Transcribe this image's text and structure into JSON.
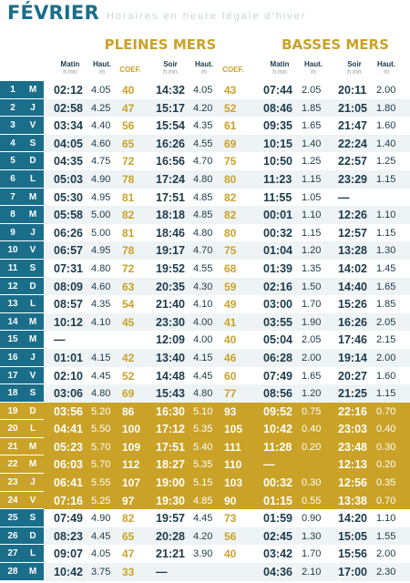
{
  "title": {
    "month": "FÉVRIER",
    "subtitle": "Horaires en heure légale d'hiver"
  },
  "sections": {
    "high": "PLEINES MERS",
    "low": "BASSES MERS"
  },
  "headers": {
    "morning": "Matin",
    "evening": "Soir",
    "unit_time": "h mn",
    "height": "Haut.",
    "unit_height": "m",
    "coef": "COEF."
  },
  "rows": [
    {
      "d": "1",
      "w": "M",
      "hm_t": "02:12",
      "hm_h": "4.05",
      "hm_c": "40",
      "he_t": "14:32",
      "he_h": "4.05",
      "he_c": "43",
      "lm_t": "07:44",
      "lm_h": "2.05",
      "le_t": "20:11",
      "le_h": "2.00"
    },
    {
      "d": "2",
      "w": "J",
      "hm_t": "02:58",
      "hm_h": "4.25",
      "hm_c": "47",
      "he_t": "15:17",
      "he_h": "4.20",
      "he_c": "52",
      "lm_t": "08:46",
      "lm_h": "1.85",
      "le_t": "21:05",
      "le_h": "1.80"
    },
    {
      "d": "3",
      "w": "V",
      "hm_t": "03:34",
      "hm_h": "4.40",
      "hm_c": "56",
      "he_t": "15:54",
      "he_h": "4.35",
      "he_c": "61",
      "lm_t": "09:35",
      "lm_h": "1.65",
      "le_t": "21:47",
      "le_h": "1.60"
    },
    {
      "d": "4",
      "w": "S",
      "hm_t": "04:05",
      "hm_h": "4.60",
      "hm_c": "65",
      "he_t": "16:26",
      "he_h": "4.55",
      "he_c": "69",
      "lm_t": "10:15",
      "lm_h": "1.40",
      "le_t": "22:24",
      "le_h": "1.40"
    },
    {
      "d": "5",
      "w": "D",
      "hm_t": "04:35",
      "hm_h": "4.75",
      "hm_c": "72",
      "he_t": "16:56",
      "he_h": "4.70",
      "he_c": "75",
      "lm_t": "10:50",
      "lm_h": "1.25",
      "le_t": "22:57",
      "le_h": "1.25"
    },
    {
      "d": "6",
      "w": "L",
      "hm_t": "05:03",
      "hm_h": "4.90",
      "hm_c": "78",
      "he_t": "17:24",
      "he_h": "4.80",
      "he_c": "80",
      "lm_t": "11:23",
      "lm_h": "1.15",
      "le_t": "23:29",
      "le_h": "1.15"
    },
    {
      "d": "7",
      "w": "M",
      "hm_t": "05:30",
      "hm_h": "4.95",
      "hm_c": "81",
      "he_t": "17:51",
      "he_h": "4.85",
      "he_c": "82",
      "lm_t": "11:55",
      "lm_h": "1.05",
      "le_t": "—",
      "le_h": ""
    },
    {
      "d": "8",
      "w": "M",
      "hm_t": "05:58",
      "hm_h": "5.00",
      "hm_c": "82",
      "he_t": "18:18",
      "he_h": "4.85",
      "he_c": "82",
      "lm_t": "00:01",
      "lm_h": "1.10",
      "le_t": "12:26",
      "le_h": "1.10"
    },
    {
      "d": "9",
      "w": "J",
      "hm_t": "06:26",
      "hm_h": "5.00",
      "hm_c": "81",
      "he_t": "18:46",
      "he_h": "4.80",
      "he_c": "80",
      "lm_t": "00:32",
      "lm_h": "1.15",
      "le_t": "12:57",
      "le_h": "1.15"
    },
    {
      "d": "10",
      "w": "V",
      "hm_t": "06:57",
      "hm_h": "4.95",
      "hm_c": "78",
      "he_t": "19:17",
      "he_h": "4.70",
      "he_c": "75",
      "lm_t": "01:04",
      "lm_h": "1.20",
      "le_t": "13:28",
      "le_h": "1.30"
    },
    {
      "d": "11",
      "w": "S",
      "hm_t": "07:31",
      "hm_h": "4.80",
      "hm_c": "72",
      "he_t": "19:52",
      "he_h": "4.55",
      "he_c": "68",
      "lm_t": "01:39",
      "lm_h": "1.35",
      "le_t": "14:02",
      "le_h": "1.45"
    },
    {
      "d": "12",
      "w": "D",
      "hm_t": "08:09",
      "hm_h": "4.60",
      "hm_c": "63",
      "he_t": "20:35",
      "he_h": "4.30",
      "he_c": "59",
      "lm_t": "02:16",
      "lm_h": "1.50",
      "le_t": "14:40",
      "le_h": "1.65"
    },
    {
      "d": "13",
      "w": "L",
      "hm_t": "08:57",
      "hm_h": "4.35",
      "hm_c": "54",
      "he_t": "21:40",
      "he_h": "4.10",
      "he_c": "49",
      "lm_t": "03:00",
      "lm_h": "1.70",
      "le_t": "15:26",
      "le_h": "1.85"
    },
    {
      "d": "14",
      "w": "M",
      "hm_t": "10:12",
      "hm_h": "4.10",
      "hm_c": "45",
      "he_t": "23:30",
      "he_h": "4.00",
      "he_c": "41",
      "lm_t": "03:55",
      "lm_h": "1.90",
      "le_t": "16:26",
      "le_h": "2.05"
    },
    {
      "d": "15",
      "w": "M",
      "hm_t": "—",
      "hm_h": "",
      "hm_c": "",
      "he_t": "12:09",
      "he_h": "4.00",
      "he_c": "40",
      "lm_t": "05:04",
      "lm_h": "2.05",
      "le_t": "17:46",
      "le_h": "2.15"
    },
    {
      "d": "16",
      "w": "J",
      "hm_t": "01:01",
      "hm_h": "4.15",
      "hm_c": "42",
      "he_t": "13:40",
      "he_h": "4.15",
      "he_c": "46",
      "lm_t": "06:28",
      "lm_h": "2.00",
      "le_t": "19:14",
      "le_h": "2.00"
    },
    {
      "d": "17",
      "w": "V",
      "hm_t": "02:10",
      "hm_h": "4.45",
      "hm_c": "52",
      "he_t": "14:48",
      "he_h": "4.45",
      "he_c": "60",
      "lm_t": "07:49",
      "lm_h": "1.65",
      "le_t": "20:27",
      "le_h": "1.60"
    },
    {
      "d": "18",
      "w": "S",
      "hm_t": "03:06",
      "hm_h": "4.80",
      "hm_c": "69",
      "he_t": "15:43",
      "he_h": "4.80",
      "he_c": "77",
      "lm_t": "08:56",
      "lm_h": "1.20",
      "le_t": "21:25",
      "le_h": "1.15"
    },
    {
      "d": "19",
      "w": "D",
      "hm_t": "03:56",
      "hm_h": "5.20",
      "hm_c": "86",
      "he_t": "16:30",
      "he_h": "5.10",
      "he_c": "93",
      "lm_t": "09:52",
      "lm_h": "0.75",
      "le_t": "22:16",
      "le_h": "0.70",
      "hl": true
    },
    {
      "d": "20",
      "w": "L",
      "hm_t": "04:41",
      "hm_h": "5.50",
      "hm_c": "100",
      "he_t": "17:12",
      "he_h": "5.35",
      "he_c": "105",
      "lm_t": "10:42",
      "lm_h": "0.40",
      "le_t": "23:03",
      "le_h": "0.40",
      "hl": true
    },
    {
      "d": "21",
      "w": "M",
      "hm_t": "05:23",
      "hm_h": "5.70",
      "hm_c": "109",
      "he_t": "17:51",
      "he_h": "5.40",
      "he_c": "111",
      "lm_t": "11:28",
      "lm_h": "0.20",
      "le_t": "23:48",
      "le_h": "0.30",
      "hl": true
    },
    {
      "d": "22",
      "w": "M",
      "hm_t": "06:03",
      "hm_h": "5.70",
      "hm_c": "112",
      "he_t": "18:27",
      "he_h": "5.35",
      "he_c": "110",
      "lm_t": "—",
      "lm_h": "",
      "le_t": "12:13",
      "le_h": "0.20",
      "hl": true
    },
    {
      "d": "23",
      "w": "J",
      "hm_t": "06:41",
      "hm_h": "5.55",
      "hm_c": "107",
      "he_t": "19:00",
      "he_h": "5.15",
      "he_c": "103",
      "lm_t": "00:32",
      "lm_h": "0.30",
      "le_t": "12:56",
      "le_h": "0.35",
      "hl": true
    },
    {
      "d": "24",
      "w": "V",
      "hm_t": "07:16",
      "hm_h": "5.25",
      "hm_c": "97",
      "he_t": "19:30",
      "he_h": "4.85",
      "he_c": "90",
      "lm_t": "01:15",
      "lm_h": "0.55",
      "le_t": "13:38",
      "le_h": "0.70",
      "hl": true
    },
    {
      "d": "25",
      "w": "S",
      "hm_t": "07:49",
      "hm_h": "4.90",
      "hm_c": "82",
      "he_t": "19:57",
      "he_h": "4.45",
      "he_c": "73",
      "lm_t": "01:59",
      "lm_h": "0.90",
      "le_t": "14:20",
      "le_h": "1.10"
    },
    {
      "d": "26",
      "w": "D",
      "hm_t": "08:23",
      "hm_h": "4.45",
      "hm_c": "65",
      "he_t": "20:28",
      "he_h": "4.20",
      "he_c": "56",
      "lm_t": "02:45",
      "lm_h": "1.30",
      "le_t": "15:05",
      "le_h": "1.55"
    },
    {
      "d": "27",
      "w": "L",
      "hm_t": "09:07",
      "hm_h": "4.05",
      "hm_c": "47",
      "he_t": "21:21",
      "he_h": "3.90",
      "he_c": "40",
      "lm_t": "03:42",
      "lm_h": "1.70",
      "le_t": "15:56",
      "le_h": "2.00"
    },
    {
      "d": "28",
      "w": "M",
      "hm_t": "10:42",
      "hm_h": "3.75",
      "hm_c": "33",
      "he_t": "—",
      "he_h": "",
      "he_c": "",
      "lm_t": "04:36",
      "lm_h": "2.10",
      "le_t": "17:00",
      "le_h": "2.30"
    }
  ]
}
